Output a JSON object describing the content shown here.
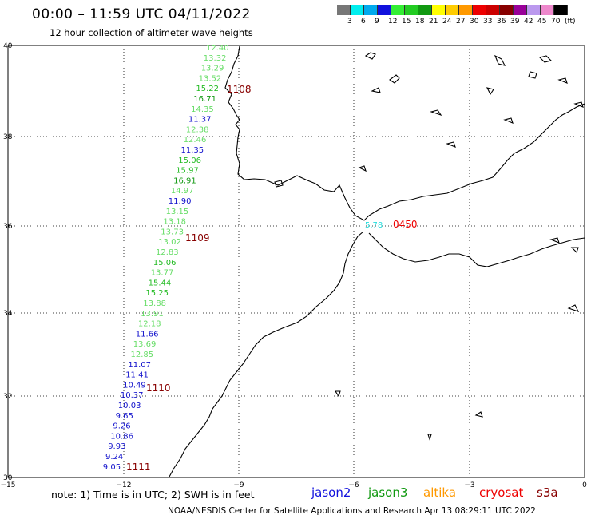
{
  "header": {
    "title": "00:00 – 11:59 UTC 04/11/2022",
    "subtitle": "12 hour collection of altimeter wave heights"
  },
  "legend": {
    "colors": [
      "#777777",
      "#00eeee",
      "#00aaee",
      "#1111dd",
      "#33ee33",
      "#22cc22",
      "#119911",
      "#ffff00",
      "#ffcc00",
      "#ff9900",
      "#ee0000",
      "#cc0000",
      "#880000",
      "#990099",
      "#bb99ee",
      "#ee88cc",
      "#000000"
    ],
    "labels": [
      "3",
      "6",
      "9",
      "12",
      "15",
      "18",
      "21",
      "24",
      "27",
      "30",
      "33",
      "36",
      "39",
      "42",
      "45",
      "70",
      "(ft)"
    ]
  },
  "axes": {
    "x_ticks": [
      "−15",
      "−12",
      "−9",
      "−6",
      "−3",
      "0"
    ],
    "y_ticks": [
      "40",
      "38",
      "36",
      "34",
      "32",
      "30"
    ]
  },
  "tracks": {
    "jason3": [
      {
        "v": "12.40",
        "c": "#66dd66"
      },
      {
        "v": "13.32",
        "c": "#66dd66"
      },
      {
        "v": "13.29",
        "c": "#66dd66"
      },
      {
        "v": "13.52",
        "c": "#66dd66"
      },
      {
        "v": "15.22",
        "c": "#22bb22"
      },
      {
        "v": "16.71",
        "c": "#119911"
      },
      {
        "v": "14.35",
        "c": "#66dd66"
      },
      {
        "v": "11.37",
        "c": "#1111cc"
      },
      {
        "v": "12.38",
        "c": "#66dd66"
      },
      {
        "v": "12.46",
        "c": "#66dd66"
      },
      {
        "v": "11.35",
        "c": "#1111cc"
      },
      {
        "v": "15.06",
        "c": "#22bb22"
      },
      {
        "v": "15.97",
        "c": "#22bb22"
      },
      {
        "v": "16.91",
        "c": "#119911"
      },
      {
        "v": "14.97",
        "c": "#66dd66"
      },
      {
        "v": "11.90",
        "c": "#1111cc"
      },
      {
        "v": "13.15",
        "c": "#66dd66"
      },
      {
        "v": "13.18",
        "c": "#66dd66"
      },
      {
        "v": "13.73",
        "c": "#66dd66"
      },
      {
        "v": "13.02",
        "c": "#66dd66"
      },
      {
        "v": "12.83",
        "c": "#66dd66"
      },
      {
        "v": "15.06",
        "c": "#22bb22"
      },
      {
        "v": "13.77",
        "c": "#66dd66"
      },
      {
        "v": "15.44",
        "c": "#22bb22"
      },
      {
        "v": "15.25",
        "c": "#22bb22"
      },
      {
        "v": "13.88",
        "c": "#66dd66"
      },
      {
        "v": "13.91",
        "c": "#66dd66"
      },
      {
        "v": "12.18",
        "c": "#66dd66"
      },
      {
        "v": "11.66",
        "c": "#1111cc"
      },
      {
        "v": "13.69",
        "c": "#66dd66"
      },
      {
        "v": "12.85",
        "c": "#66dd66"
      },
      {
        "v": "11.07",
        "c": "#1111cc"
      },
      {
        "v": "11.41",
        "c": "#1111cc"
      },
      {
        "v": "10.49",
        "c": "#1111cc"
      },
      {
        "v": "10.37",
        "c": "#1111cc"
      },
      {
        "v": "10.03",
        "c": "#1111cc"
      },
      {
        "v": "9.65",
        "c": "#1111cc"
      },
      {
        "v": "9.26",
        "c": "#1111cc"
      },
      {
        "v": "10.86",
        "c": "#1111cc"
      },
      {
        "v": "9.93",
        "c": "#1111cc"
      },
      {
        "v": "9.24",
        "c": "#1111cc"
      },
      {
        "v": "9.05",
        "c": "#1111cc"
      }
    ],
    "times": [
      "1108",
      "1109",
      "1110",
      "1111"
    ],
    "cryosat": {
      "value": "5.78",
      "time": "0450"
    }
  },
  "note": "note: 1) Time is in UTC; 2) SWH is in feet",
  "satellites": [
    {
      "name": "jason2",
      "color": "#1111dd"
    },
    {
      "name": "jason3",
      "color": "#119911"
    },
    {
      "name": "altika",
      "color": "#ff9900"
    },
    {
      "name": "cryosat",
      "color": "#ee0000"
    },
    {
      "name": "s3a",
      "color": "#880000"
    }
  ],
  "footer": "NOAA/NESDIS Center for Satellite Applications and Research     Apr 13 08:29:11 UTC 2022"
}
